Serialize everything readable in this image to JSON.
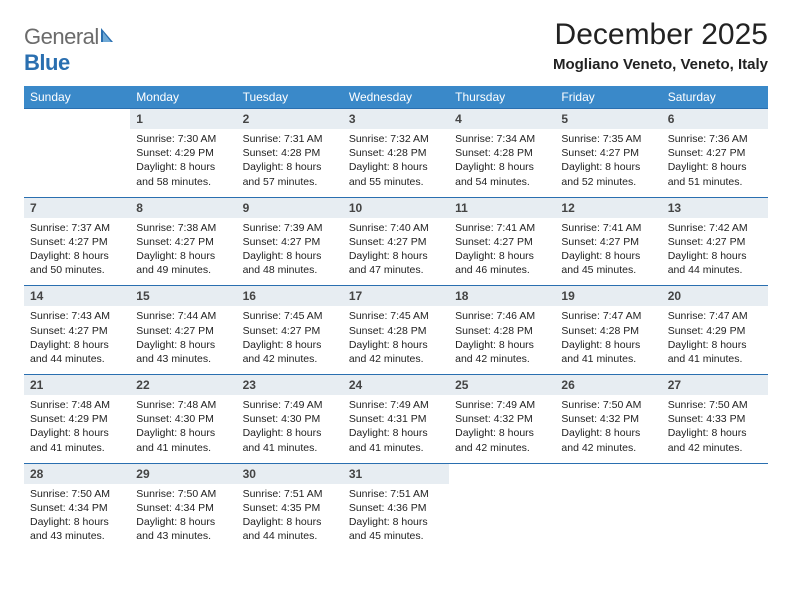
{
  "logo": {
    "text_part1": "General",
    "text_part2": "Blue",
    "icon_color": "#2a6fb0"
  },
  "header": {
    "month_title": "December 2025",
    "location": "Mogliano Veneto, Veneto, Italy"
  },
  "colors": {
    "header_bg": "#3a89c9",
    "daynum_bg": "#e7edf2",
    "rule": "#2a6fb0",
    "text": "#222222",
    "logo_gray": "#6b6b6b"
  },
  "fonts": {
    "title_size_pt": 22,
    "location_size_pt": 11,
    "dow_size_pt": 9,
    "daynum_size_pt": 9,
    "body_size_pt": 8
  },
  "days_of_week": [
    "Sunday",
    "Monday",
    "Tuesday",
    "Wednesday",
    "Thursday",
    "Friday",
    "Saturday"
  ],
  "weeks": [
    [
      {
        "blank": true
      },
      {
        "num": "1",
        "sunrise": "Sunrise: 7:30 AM",
        "sunset": "Sunset: 4:29 PM",
        "daylight": "Daylight: 8 hours and 58 minutes."
      },
      {
        "num": "2",
        "sunrise": "Sunrise: 7:31 AM",
        "sunset": "Sunset: 4:28 PM",
        "daylight": "Daylight: 8 hours and 57 minutes."
      },
      {
        "num": "3",
        "sunrise": "Sunrise: 7:32 AM",
        "sunset": "Sunset: 4:28 PM",
        "daylight": "Daylight: 8 hours and 55 minutes."
      },
      {
        "num": "4",
        "sunrise": "Sunrise: 7:34 AM",
        "sunset": "Sunset: 4:28 PM",
        "daylight": "Daylight: 8 hours and 54 minutes."
      },
      {
        "num": "5",
        "sunrise": "Sunrise: 7:35 AM",
        "sunset": "Sunset: 4:27 PM",
        "daylight": "Daylight: 8 hours and 52 minutes."
      },
      {
        "num": "6",
        "sunrise": "Sunrise: 7:36 AM",
        "sunset": "Sunset: 4:27 PM",
        "daylight": "Daylight: 8 hours and 51 minutes."
      }
    ],
    [
      {
        "num": "7",
        "sunrise": "Sunrise: 7:37 AM",
        "sunset": "Sunset: 4:27 PM",
        "daylight": "Daylight: 8 hours and 50 minutes."
      },
      {
        "num": "8",
        "sunrise": "Sunrise: 7:38 AM",
        "sunset": "Sunset: 4:27 PM",
        "daylight": "Daylight: 8 hours and 49 minutes."
      },
      {
        "num": "9",
        "sunrise": "Sunrise: 7:39 AM",
        "sunset": "Sunset: 4:27 PM",
        "daylight": "Daylight: 8 hours and 48 minutes."
      },
      {
        "num": "10",
        "sunrise": "Sunrise: 7:40 AM",
        "sunset": "Sunset: 4:27 PM",
        "daylight": "Daylight: 8 hours and 47 minutes."
      },
      {
        "num": "11",
        "sunrise": "Sunrise: 7:41 AM",
        "sunset": "Sunset: 4:27 PM",
        "daylight": "Daylight: 8 hours and 46 minutes."
      },
      {
        "num": "12",
        "sunrise": "Sunrise: 7:41 AM",
        "sunset": "Sunset: 4:27 PM",
        "daylight": "Daylight: 8 hours and 45 minutes."
      },
      {
        "num": "13",
        "sunrise": "Sunrise: 7:42 AM",
        "sunset": "Sunset: 4:27 PM",
        "daylight": "Daylight: 8 hours and 44 minutes."
      }
    ],
    [
      {
        "num": "14",
        "sunrise": "Sunrise: 7:43 AM",
        "sunset": "Sunset: 4:27 PM",
        "daylight": "Daylight: 8 hours and 44 minutes."
      },
      {
        "num": "15",
        "sunrise": "Sunrise: 7:44 AM",
        "sunset": "Sunset: 4:27 PM",
        "daylight": "Daylight: 8 hours and 43 minutes."
      },
      {
        "num": "16",
        "sunrise": "Sunrise: 7:45 AM",
        "sunset": "Sunset: 4:27 PM",
        "daylight": "Daylight: 8 hours and 42 minutes."
      },
      {
        "num": "17",
        "sunrise": "Sunrise: 7:45 AM",
        "sunset": "Sunset: 4:28 PM",
        "daylight": "Daylight: 8 hours and 42 minutes."
      },
      {
        "num": "18",
        "sunrise": "Sunrise: 7:46 AM",
        "sunset": "Sunset: 4:28 PM",
        "daylight": "Daylight: 8 hours and 42 minutes."
      },
      {
        "num": "19",
        "sunrise": "Sunrise: 7:47 AM",
        "sunset": "Sunset: 4:28 PM",
        "daylight": "Daylight: 8 hours and 41 minutes."
      },
      {
        "num": "20",
        "sunrise": "Sunrise: 7:47 AM",
        "sunset": "Sunset: 4:29 PM",
        "daylight": "Daylight: 8 hours and 41 minutes."
      }
    ],
    [
      {
        "num": "21",
        "sunrise": "Sunrise: 7:48 AM",
        "sunset": "Sunset: 4:29 PM",
        "daylight": "Daylight: 8 hours and 41 minutes."
      },
      {
        "num": "22",
        "sunrise": "Sunrise: 7:48 AM",
        "sunset": "Sunset: 4:30 PM",
        "daylight": "Daylight: 8 hours and 41 minutes."
      },
      {
        "num": "23",
        "sunrise": "Sunrise: 7:49 AM",
        "sunset": "Sunset: 4:30 PM",
        "daylight": "Daylight: 8 hours and 41 minutes."
      },
      {
        "num": "24",
        "sunrise": "Sunrise: 7:49 AM",
        "sunset": "Sunset: 4:31 PM",
        "daylight": "Daylight: 8 hours and 41 minutes."
      },
      {
        "num": "25",
        "sunrise": "Sunrise: 7:49 AM",
        "sunset": "Sunset: 4:32 PM",
        "daylight": "Daylight: 8 hours and 42 minutes."
      },
      {
        "num": "26",
        "sunrise": "Sunrise: 7:50 AM",
        "sunset": "Sunset: 4:32 PM",
        "daylight": "Daylight: 8 hours and 42 minutes."
      },
      {
        "num": "27",
        "sunrise": "Sunrise: 7:50 AM",
        "sunset": "Sunset: 4:33 PM",
        "daylight": "Daylight: 8 hours and 42 minutes."
      }
    ],
    [
      {
        "num": "28",
        "sunrise": "Sunrise: 7:50 AM",
        "sunset": "Sunset: 4:34 PM",
        "daylight": "Daylight: 8 hours and 43 minutes."
      },
      {
        "num": "29",
        "sunrise": "Sunrise: 7:50 AM",
        "sunset": "Sunset: 4:34 PM",
        "daylight": "Daylight: 8 hours and 43 minutes."
      },
      {
        "num": "30",
        "sunrise": "Sunrise: 7:51 AM",
        "sunset": "Sunset: 4:35 PM",
        "daylight": "Daylight: 8 hours and 44 minutes."
      },
      {
        "num": "31",
        "sunrise": "Sunrise: 7:51 AM",
        "sunset": "Sunset: 4:36 PM",
        "daylight": "Daylight: 8 hours and 45 minutes."
      },
      {
        "blank": true
      },
      {
        "blank": true
      },
      {
        "blank": true
      }
    ]
  ]
}
